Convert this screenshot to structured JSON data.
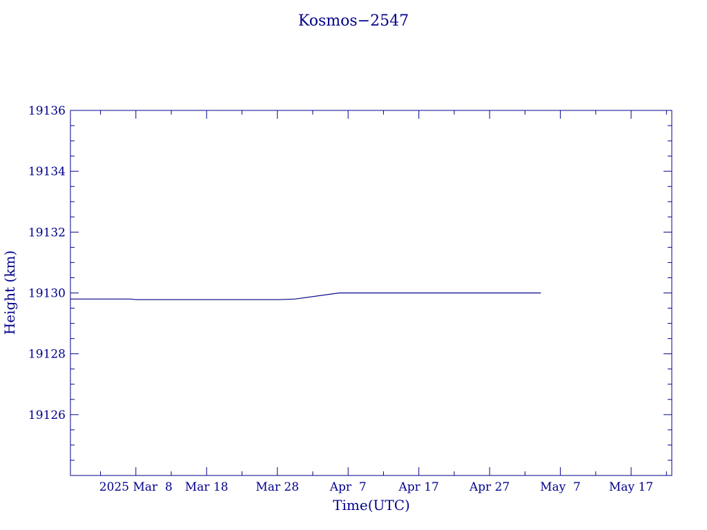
{
  "chart_data": {
    "type": "line",
    "title": "Kosmos−2547",
    "xlabel": "Time(UTC)",
    "ylabel": "Height (km)",
    "ylim": [
      19124,
      19136
    ],
    "xlim": [
      "2025-02-26T18:00",
      "2025-05-22T18:00"
    ],
    "grid": false,
    "color": "#00008b",
    "y_ticks": [
      19126,
      19128,
      19130,
      19132,
      19134,
      19136
    ],
    "x_ticks": [
      {
        "date": "2025-03-08",
        "label": "2025 Mar  8"
      },
      {
        "date": "2025-03-18",
        "label": "Mar 18"
      },
      {
        "date": "2025-03-28",
        "label": "Mar 28"
      },
      {
        "date": "2025-04-07",
        "label": "Apr  7"
      },
      {
        "date": "2025-04-17",
        "label": "Apr 17"
      },
      {
        "date": "2025-04-27",
        "label": "Apr 27"
      },
      {
        "date": "2025-05-07",
        "label": "May  7"
      },
      {
        "date": "2025-05-17",
        "label": "May 17"
      }
    ],
    "series": [
      {
        "x": [
          "2025-02-26T18:00",
          "2025-03-07T06:00",
          "2025-03-08T00:00",
          "2025-03-28T06:00",
          "2025-03-30T12:00",
          "2025-04-05T18:00",
          "2025-04-07T00:00",
          "2025-04-12T12:00",
          "2025-04-17T00:00",
          "2025-05-04T06:00"
        ],
        "y": [
          19129.8,
          19129.8,
          19129.78,
          19129.78,
          19129.8,
          19130.0,
          19130.0,
          19130.0,
          19130.0,
          19130.0
        ]
      }
    ]
  }
}
